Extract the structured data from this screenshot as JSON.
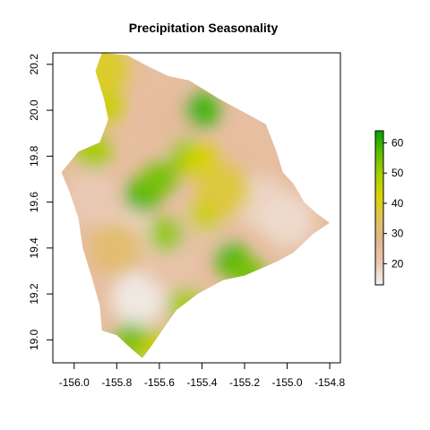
{
  "chart_data": {
    "type": "heatmap",
    "title": "Precipitation Seasonality",
    "xlabel": "",
    "ylabel": "",
    "xlim": [
      -156.1,
      -154.75
    ],
    "ylim": [
      18.9,
      20.25
    ],
    "x_ticks": [
      -156.0,
      -155.8,
      -155.6,
      -155.4,
      -155.2,
      -155.0,
      -154.8
    ],
    "x_tick_labels": [
      "-156.0",
      "-155.8",
      "-155.6",
      "-155.4",
      "-155.2",
      "-155.0",
      "-154.8"
    ],
    "y_ticks": [
      19.0,
      19.2,
      19.4,
      19.6,
      19.8,
      20.0,
      20.2
    ],
    "y_tick_labels": [
      "19.0",
      "19.2",
      "19.4",
      "19.6",
      "19.8",
      "20.0",
      "20.2"
    ],
    "legend": {
      "placement": "right",
      "min": 13,
      "max": 64,
      "ticks": [
        20,
        30,
        40,
        50,
        60
      ],
      "tick_labels": [
        "20",
        "30",
        "40",
        "50",
        "60"
      ],
      "colors": [
        "#f2f2f2",
        "#eac8b2",
        "#e3b58f",
        "#e0c060",
        "#d8d400",
        "#a8d000",
        "#60bc00",
        "#00a600"
      ]
    },
    "grid": false,
    "island_outline": [
      [
        -155.87,
        20.25
      ],
      [
        -155.75,
        20.24
      ],
      [
        -155.65,
        20.19
      ],
      [
        -155.56,
        20.15
      ],
      [
        -155.46,
        20.13
      ],
      [
        -155.32,
        20.05
      ],
      [
        -155.2,
        19.99
      ],
      [
        -155.1,
        19.94
      ],
      [
        -155.05,
        19.82
      ],
      [
        -155.02,
        19.73
      ],
      [
        -154.97,
        19.68
      ],
      [
        -154.92,
        19.6
      ],
      [
        -154.86,
        19.55
      ],
      [
        -154.8,
        19.51
      ],
      [
        -154.88,
        19.46
      ],
      [
        -154.97,
        19.38
      ],
      [
        -155.05,
        19.34
      ],
      [
        -155.2,
        19.28
      ],
      [
        -155.3,
        19.26
      ],
      [
        -155.42,
        19.2
      ],
      [
        -155.52,
        19.13
      ],
      [
        -155.58,
        19.05
      ],
      [
        -155.64,
        18.97
      ],
      [
        -155.68,
        18.92
      ],
      [
        -155.73,
        18.96
      ],
      [
        -155.8,
        19.02
      ],
      [
        -155.87,
        19.04
      ],
      [
        -155.88,
        19.15
      ],
      [
        -155.92,
        19.28
      ],
      [
        -155.96,
        19.4
      ],
      [
        -155.98,
        19.53
      ],
      [
        -156.02,
        19.64
      ],
      [
        -156.06,
        19.73
      ],
      [
        -155.98,
        19.82
      ],
      [
        -155.88,
        19.86
      ],
      [
        -155.84,
        19.96
      ],
      [
        -155.86,
        20.05
      ],
      [
        -155.9,
        20.17
      ]
    ],
    "raster": [
      {
        "lon": -155.7,
        "lat": 19.18,
        "value": 14
      },
      {
        "lon": -155.75,
        "lat": 19.45,
        "value": 18
      },
      {
        "lon": -155.55,
        "lat": 19.33,
        "value": 22
      },
      {
        "lon": -155.4,
        "lat": 19.5,
        "value": 23
      },
      {
        "lon": -155.12,
        "lat": 19.6,
        "value": 18
      },
      {
        "lon": -155.0,
        "lat": 19.52,
        "value": 17
      },
      {
        "lon": -155.55,
        "lat": 19.95,
        "value": 25
      },
      {
        "lon": -155.92,
        "lat": 19.62,
        "value": 20
      },
      {
        "lon": -155.68,
        "lat": 19.63,
        "value": 58
      },
      {
        "lon": -155.6,
        "lat": 19.7,
        "value": 55
      },
      {
        "lon": -155.4,
        "lat": 20.0,
        "value": 60
      },
      {
        "lon": -155.47,
        "lat": 19.8,
        "value": 52
      },
      {
        "lon": -155.85,
        "lat": 20.02,
        "value": 45
      },
      {
        "lon": -155.91,
        "lat": 19.82,
        "value": 50
      },
      {
        "lon": -155.26,
        "lat": 19.35,
        "value": 58
      },
      {
        "lon": -155.18,
        "lat": 19.28,
        "value": 55
      },
      {
        "lon": -155.38,
        "lat": 19.55,
        "value": 45
      },
      {
        "lon": -155.57,
        "lat": 19.46,
        "value": 52
      },
      {
        "lon": -155.73,
        "lat": 19.0,
        "value": 55
      },
      {
        "lon": -155.6,
        "lat": 18.97,
        "value": 45
      },
      {
        "lon": -155.48,
        "lat": 19.15,
        "value": 50
      },
      {
        "lon": -155.4,
        "lat": 19.78,
        "value": 42
      },
      {
        "lon": -155.3,
        "lat": 19.65,
        "value": 38
      },
      {
        "lon": -155.87,
        "lat": 20.18,
        "value": 40
      },
      {
        "lon": -155.8,
        "lat": 19.4,
        "value": 33
      }
    ]
  }
}
